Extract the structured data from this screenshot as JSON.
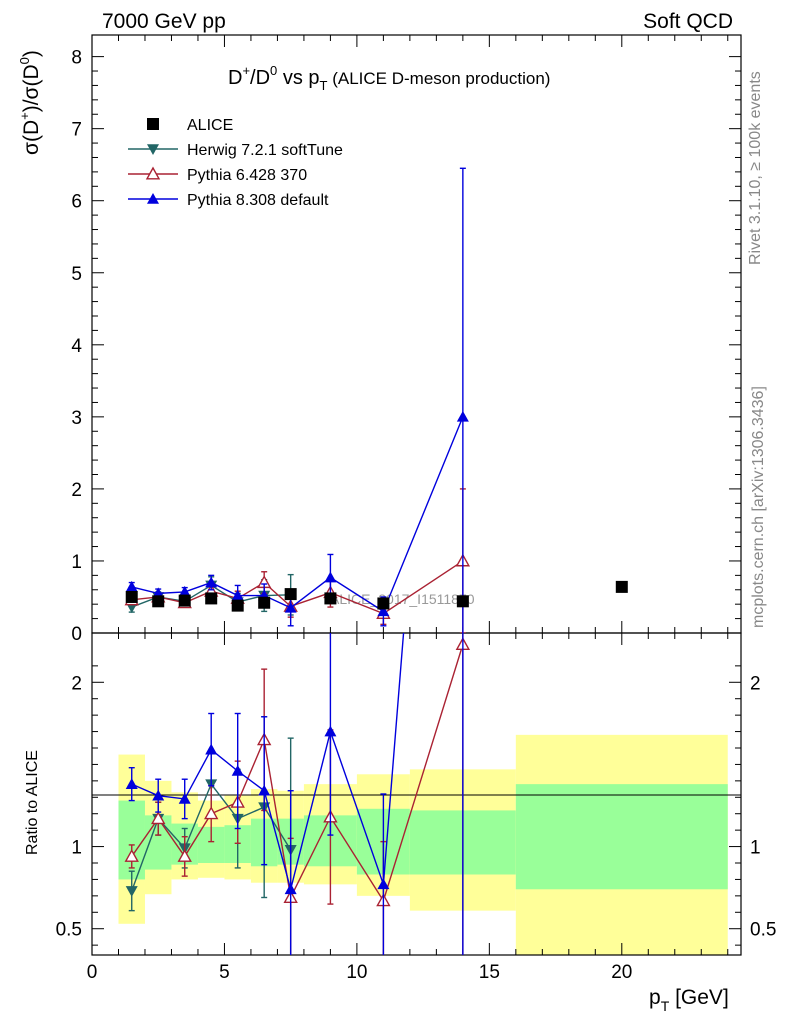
{
  "header": {
    "left": "7000 GeV pp",
    "right": "Soft QCD"
  },
  "side_text": {
    "rivet": "Rivet 3.1.10, ≥ 100k events",
    "mcplots": "mcplots.cern.ch [arXiv:1306.3436]"
  },
  "chart_data": {
    "type": "scatter",
    "title_parts": {
      "a": "D",
      "a_sup": "+",
      "slash": "/D",
      "b_sup": "0",
      "vs": " vs p",
      "sub": "T",
      "rest": " (ALICE D-meson production)"
    },
    "ylabel_parts": {
      "p1": "σ(D",
      "s1": "+",
      "p2": ")/σ(D",
      "s2": "0",
      "p3": ")"
    },
    "xlabel_parts": {
      "p": "p",
      "sub": "T",
      "rest": " [GeV]"
    },
    "ratio_ylabel": "Ratio to ALICE",
    "watermark": "ALICE_2017_I1511870",
    "xlim": [
      0,
      24.5
    ],
    "ylim_main": [
      0,
      8.3
    ],
    "ylim_ratio": [
      0.34,
      2.3
    ],
    "main_yticks": [
      "0",
      "1",
      "2",
      "3",
      "4",
      "5",
      "6",
      "7",
      "8"
    ],
    "ratio_yticks": [
      {
        "v": 0.5,
        "label": "0.5"
      },
      {
        "v": 1,
        "label": "1"
      },
      {
        "v": 2,
        "label": "2"
      }
    ],
    "xticks": [
      "0",
      "5",
      "10",
      "15",
      "20"
    ],
    "legend_placement": "top-left",
    "series": [
      {
        "name": "ALICE",
        "color": "#000000",
        "marker": "square",
        "x": [
          1.5,
          2.5,
          3.5,
          4.5,
          5.5,
          6.5,
          7.5,
          9.0,
          11.0,
          14.0,
          20.0
        ],
        "y": [
          0.5,
          0.44,
          0.45,
          0.48,
          0.38,
          0.42,
          0.54,
          0.48,
          0.41,
          0.44,
          0.64
        ]
      },
      {
        "name": "Herwig 7.2.1 softTune",
        "color": "#226666",
        "marker": "triangle-down",
        "x": [
          1.5,
          2.5,
          3.5,
          4.5,
          5.5,
          6.5,
          7.5
        ],
        "y": [
          0.36,
          0.5,
          0.44,
          0.66,
          0.43,
          0.52,
          0.53
        ],
        "err": [
          0.07,
          0.07,
          0.07,
          0.12,
          0.12,
          0.22,
          0.28
        ]
      },
      {
        "name": "Pythia 6.428 370",
        "color": "#aa2233",
        "marker": "triangle-up-open",
        "x": [
          1.5,
          2.5,
          3.5,
          4.5,
          5.5,
          6.5,
          7.5,
          9.0,
          11.0,
          14.0
        ],
        "y": [
          0.46,
          0.5,
          0.42,
          0.58,
          0.48,
          0.7,
          0.37,
          0.56,
          0.27,
          1.0
        ],
        "err": [
          0.05,
          0.05,
          0.05,
          0.08,
          0.1,
          0.15,
          0.15,
          0.2,
          0.15,
          1.0
        ]
      },
      {
        "name": "Pythia 8.308 default",
        "color": "#0000dd",
        "marker": "triangle-up",
        "x": [
          1.5,
          2.5,
          3.5,
          4.5,
          5.5,
          6.5,
          7.5,
          9.0,
          11.0,
          14.0
        ],
        "y": [
          0.64,
          0.55,
          0.57,
          0.7,
          0.52,
          0.52,
          0.35,
          0.77,
          0.3,
          3.0
        ],
        "err": [
          0.06,
          0.06,
          0.06,
          0.1,
          0.14,
          0.16,
          0.25,
          0.32,
          0.2,
          3.45
        ]
      }
    ],
    "ratio_series": [
      {
        "name": "Herwig 7.2.1 softTune",
        "x": [
          1.5,
          2.5,
          3.5,
          4.5,
          5.5,
          6.5,
          7.5
        ],
        "y": [
          0.73,
          1.17,
          0.99,
          1.38,
          1.17,
          1.24,
          0.98
        ],
        "err": [
          0.12,
          0.1,
          0.12,
          0.2,
          0.3,
          0.55,
          0.68
        ]
      },
      {
        "name": "Pythia 6.428 370",
        "x": [
          1.5,
          2.5,
          3.5,
          4.5,
          5.5,
          6.5,
          7.5,
          9.0,
          11.0,
          14.0
        ],
        "y": [
          0.94,
          1.17,
          0.94,
          1.2,
          1.27,
          1.65,
          0.69,
          1.18,
          0.67,
          2.23
        ],
        "err": [
          0.07,
          0.1,
          0.12,
          0.17,
          0.25,
          0.43,
          0.36,
          0.53,
          0.36,
          2.1
        ]
      },
      {
        "name": "Pythia 8.308 default",
        "x": [
          1.5,
          2.5,
          3.5,
          4.5,
          5.5,
          6.5,
          7.5,
          9.0,
          11.0,
          14.0
        ],
        "y": [
          1.38,
          1.31,
          1.29,
          1.59,
          1.46,
          1.34,
          0.74,
          1.7,
          0.77,
          6.8
        ],
        "err": [
          0.1,
          0.1,
          0.12,
          0.22,
          0.35,
          0.45,
          0.6,
          0.63,
          0.55,
          7.0
        ]
      }
    ],
    "bands": [
      {
        "x0": 1.0,
        "x1": 2.0,
        "y_lo": 0.53,
        "y_hi": 1.56,
        "g_lo": 0.8,
        "g_hi": 1.28
      },
      {
        "x0": 2.0,
        "x1": 3.0,
        "y_lo": 0.71,
        "y_hi": 1.4,
        "g_lo": 0.86,
        "g_hi": 1.19
      },
      {
        "x0": 3.0,
        "x1": 4.0,
        "y_lo": 0.8,
        "y_hi": 1.33,
        "g_lo": 0.89,
        "g_hi": 1.14
      },
      {
        "x0": 4.0,
        "x1": 5.0,
        "y_lo": 0.81,
        "y_hi": 1.28,
        "g_lo": 0.9,
        "g_hi": 1.12
      },
      {
        "x0": 5.0,
        "x1": 6.0,
        "y_lo": 0.8,
        "y_hi": 1.31,
        "g_lo": 0.9,
        "g_hi": 1.13
      },
      {
        "x0": 6.0,
        "x1": 7.0,
        "y_lo": 0.78,
        "y_hi": 1.35,
        "g_lo": 0.88,
        "g_hi": 1.17
      },
      {
        "x0": 7.0,
        "x1": 8.0,
        "y_lo": 0.78,
        "y_hi": 1.34,
        "g_lo": 0.89,
        "g_hi": 1.17
      },
      {
        "x0": 8.0,
        "x1": 10.0,
        "y_lo": 0.77,
        "y_hi": 1.38,
        "g_lo": 0.88,
        "g_hi": 1.19
      },
      {
        "x0": 10.0,
        "x1": 12.0,
        "y_lo": 0.7,
        "y_hi": 1.44,
        "g_lo": 0.83,
        "g_hi": 1.23
      },
      {
        "x0": 12.0,
        "x1": 16.0,
        "y_lo": 0.61,
        "y_hi": 1.47,
        "g_lo": 0.83,
        "g_hi": 1.22
      },
      {
        "x0": 16.0,
        "x1": 24.0,
        "y_lo": 0.34,
        "y_hi": 1.68,
        "g_lo": 0.74,
        "g_hi": 1.38
      }
    ],
    "colors": {
      "yellow": "#ffff99",
      "green": "#99ff99"
    }
  }
}
